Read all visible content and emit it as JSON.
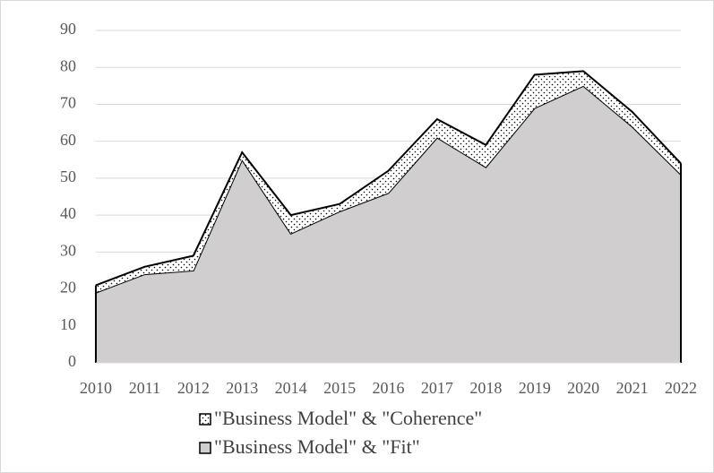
{
  "chart_data": {
    "type": "stacked_area",
    "categories": [
      "2010",
      "2011",
      "2012",
      "2013",
      "2014",
      "2015",
      "2016",
      "2017",
      "2018",
      "2019",
      "2020",
      "2021",
      "2022"
    ],
    "series": [
      {
        "name": "\"Business Model\" & \"Fit\"",
        "color": "#d0cece",
        "values": [
          19,
          24,
          25,
          55,
          35,
          41,
          46,
          61,
          53,
          69,
          75,
          64,
          51
        ]
      },
      {
        "name": "\"Business Model\" & \"Coherence\"",
        "color": "#ffffff",
        "pattern": "dots",
        "values": [
          2,
          2,
          4,
          2,
          5,
          2,
          6,
          5,
          6,
          9,
          4,
          4,
          3
        ]
      }
    ],
    "ylim": [
      0,
      90
    ],
    "yticks": [
      0,
      10,
      20,
      30,
      40,
      50,
      60,
      70,
      80,
      90
    ],
    "grid": true,
    "legend": "bottom"
  }
}
